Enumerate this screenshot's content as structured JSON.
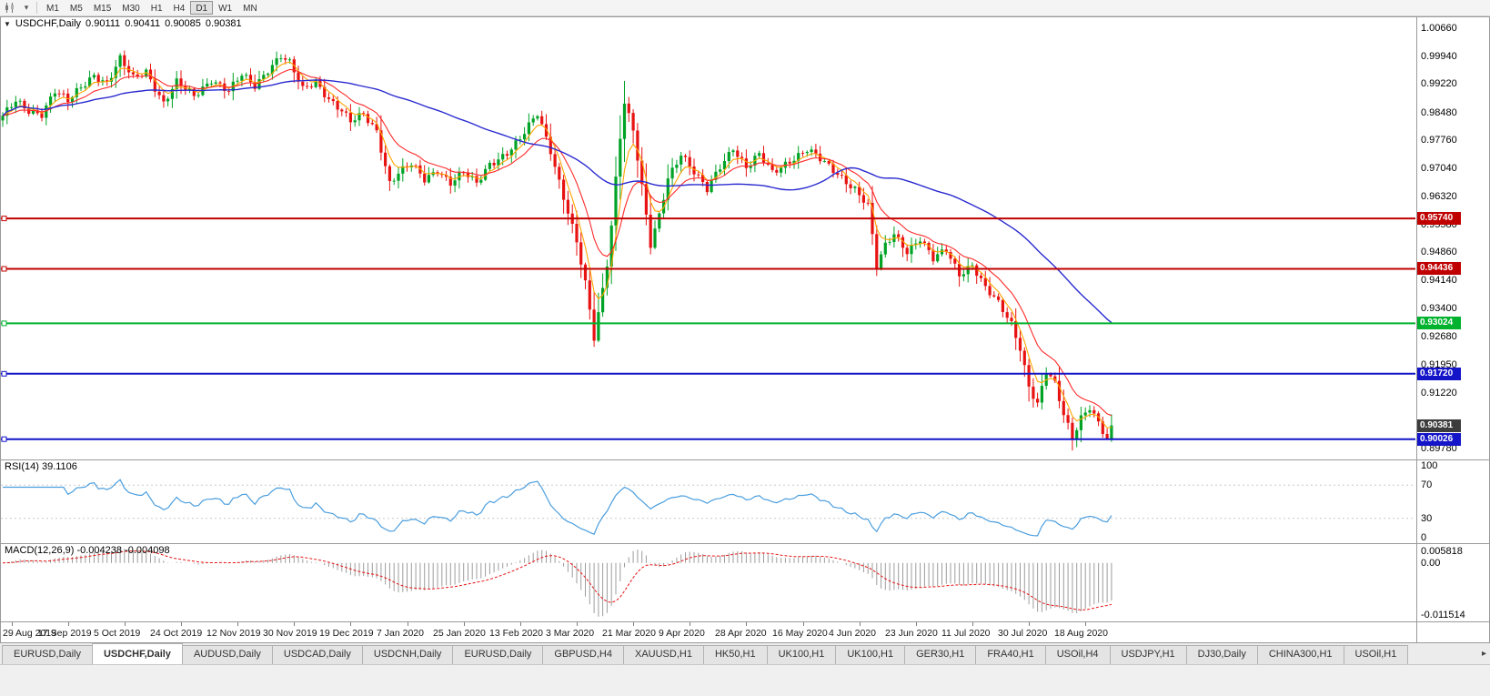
{
  "toolbar": {
    "timeframes": [
      {
        "label": "M1",
        "active": false
      },
      {
        "label": "M5",
        "active": false
      },
      {
        "label": "M15",
        "active": false
      },
      {
        "label": "M30",
        "active": false
      },
      {
        "label": "H1",
        "active": false
      },
      {
        "label": "H4",
        "active": false
      },
      {
        "label": "D1",
        "active": true
      },
      {
        "label": "W1",
        "active": false
      },
      {
        "label": "MN",
        "active": false
      }
    ]
  },
  "chart_header": {
    "title": "USDCHF,Daily",
    "open": "0.90111",
    "high": "0.90411",
    "low": "0.90085",
    "close": "0.90381"
  },
  "chart_data": {
    "type": "candlestick",
    "title": "USDCHF,Daily",
    "symbol": "USDCHF",
    "period": "Daily",
    "n_candles": 256,
    "candle_spacing": 4.78,
    "ylim": [
      0.895,
      1.0095
    ],
    "up_color": "#00A326",
    "down_color": "#E81212",
    "close_keypoints": [
      [
        0,
        0.9835
      ],
      [
        3,
        0.9878
      ],
      [
        6,
        0.9856
      ],
      [
        9,
        0.9846
      ],
      [
        12,
        0.9902
      ],
      [
        15,
        0.9876
      ],
      [
        18,
        0.9916
      ],
      [
        21,
        0.9948
      ],
      [
        24,
        0.9922
      ],
      [
        27,
        0.9984
      ],
      [
        30,
        0.9938
      ],
      [
        33,
        0.9958
      ],
      [
        37,
        0.9872
      ],
      [
        40,
        0.9924
      ],
      [
        44,
        0.9892
      ],
      [
        48,
        0.9936
      ],
      [
        52,
        0.9902
      ],
      [
        55,
        0.9944
      ],
      [
        58,
        0.9918
      ],
      [
        61,
        0.9962
      ],
      [
        64,
        0.9996
      ],
      [
        66,
        0.9974
      ],
      [
        69,
        0.9906
      ],
      [
        72,
        0.993
      ],
      [
        75,
        0.9886
      ],
      [
        78,
        0.9852
      ],
      [
        80,
        0.9822
      ],
      [
        83,
        0.9842
      ],
      [
        86,
        0.9802
      ],
      [
        89,
        0.9668
      ],
      [
        91,
        0.9692
      ],
      [
        94,
        0.9712
      ],
      [
        97,
        0.9674
      ],
      [
        100,
        0.9702
      ],
      [
        103,
        0.9668
      ],
      [
        106,
        0.9692
      ],
      [
        109,
        0.9662
      ],
      [
        112,
        0.9716
      ],
      [
        116,
        0.9746
      ],
      [
        119,
        0.9778
      ],
      [
        123,
        0.9844
      ],
      [
        126,
        0.9752
      ],
      [
        129,
        0.9632
      ],
      [
        132,
        0.9512
      ],
      [
        134,
        0.9402
      ],
      [
        136,
        0.9262
      ],
      [
        138,
        0.939
      ],
      [
        139,
        0.946
      ],
      [
        140,
        0.956
      ],
      [
        141,
        0.968
      ],
      [
        142,
        0.979
      ],
      [
        143,
        0.9878
      ],
      [
        145,
        0.9802
      ],
      [
        147,
        0.9652
      ],
      [
        149,
        0.9502
      ],
      [
        151,
        0.9582
      ],
      [
        153,
        0.9682
      ],
      [
        156,
        0.9744
      ],
      [
        159,
        0.9692
      ],
      [
        162,
        0.9646
      ],
      [
        165,
        0.971
      ],
      [
        168,
        0.976
      ],
      [
        171,
        0.9706
      ],
      [
        174,
        0.9736
      ],
      [
        177,
        0.9692
      ],
      [
        181,
        0.9726
      ],
      [
        185,
        0.9752
      ],
      [
        189,
        0.9716
      ],
      [
        193,
        0.9682
      ],
      [
        196,
        0.9652
      ],
      [
        199,
        0.9606
      ],
      [
        201,
        0.9446
      ],
      [
        203,
        0.9502
      ],
      [
        205,
        0.9536
      ],
      [
        208,
        0.9492
      ],
      [
        211,
        0.9522
      ],
      [
        214,
        0.9466
      ],
      [
        217,
        0.9492
      ],
      [
        220,
        0.9432
      ],
      [
        223,
        0.9456
      ],
      [
        226,
        0.9392
      ],
      [
        229,
        0.9352
      ],
      [
        232,
        0.9302
      ],
      [
        234,
        0.9242
      ],
      [
        236,
        0.9142
      ],
      [
        238,
        0.9092
      ],
      [
        240,
        0.9176
      ],
      [
        242,
        0.9142
      ],
      [
        244,
        0.9066
      ],
      [
        246,
        0.901
      ],
      [
        248,
        0.9062
      ],
      [
        250,
        0.9088
      ],
      [
        252,
        0.9042
      ],
      [
        254,
        0.8998
      ],
      [
        255,
        0.90381
      ]
    ],
    "moving_averages": [
      {
        "name": "fast",
        "method": "ema",
        "period": 5,
        "color": "#FFA500",
        "width": 1.1
      },
      {
        "name": "medium",
        "method": "ema",
        "period": 13,
        "color": "#FF2A2A",
        "width": 1.1
      },
      {
        "name": "slow",
        "method": "sma",
        "period": 55,
        "color": "#2A2AD0",
        "width": 1.4
      }
    ],
    "hlines": [
      {
        "price": 0.9574,
        "label": "0.95740",
        "color": "#C00000"
      },
      {
        "price": 0.94436,
        "label": "0.94436",
        "color": "#C00000"
      },
      {
        "price": 0.93024,
        "label": "0.93024",
        "color": "#00B22D"
      },
      {
        "price": 0.9172,
        "label": "0.91720",
        "color": "#1414C8"
      },
      {
        "price": 0.90026,
        "label": "0.90026",
        "color": "#1414C8"
      }
    ],
    "current_price": {
      "price": 0.90381,
      "label": "0.90381",
      "color": "#3C3C3C"
    },
    "y_axis_labels": [
      "1.00660",
      "0.99940",
      "0.99220",
      "0.98480",
      "0.97760",
      "0.97040",
      "0.96320",
      "0.95580",
      "0.94860",
      "0.94140",
      "0.93400",
      "0.92680",
      "0.91950",
      "0.91220",
      "0.89780"
    ]
  },
  "rsi": {
    "label": "RSI(14) 39.1106",
    "period": 14,
    "line_color": "#4A9EDE",
    "levels": [
      {
        "value": 100,
        "label": "100",
        "dashed": false
      },
      {
        "value": 70,
        "label": "70",
        "dashed": true
      },
      {
        "value": 30,
        "label": "30",
        "dashed": true
      },
      {
        "value": 0,
        "label": "0",
        "dashed": false
      }
    ]
  },
  "macd": {
    "label": "MACD(12,26,9) -0.004238 -0.004098",
    "fast": 12,
    "slow": 26,
    "signal": 9,
    "hist_color": "#9C9C9C",
    "signal_color": "#E81212",
    "axis_labels": {
      "top": "0.005818",
      "zero": "0.00",
      "bottom": "-0.011514"
    }
  },
  "date_axis": {
    "labels": [
      "29 Aug 2019",
      "17 Sep 2019",
      "5 Oct 2019",
      "24 Oct 2019",
      "12 Nov 2019",
      "30 Nov 2019",
      "19 Dec 2019",
      "7 Jan 2020",
      "25 Jan 2020",
      "13 Feb 2020",
      "3 Mar 2020",
      "21 Mar 2020",
      "9 Apr 2020",
      "28 Apr 2020",
      "16 May 2020",
      "4 Jun 2020",
      "23 Jun 2020",
      "11 Jul 2020",
      "30 Jul 2020",
      "18 Aug 2020"
    ],
    "first_candle_index": 2,
    "index_step": 13
  },
  "tabs": {
    "items": [
      {
        "label": "EURUSD,Daily",
        "active": false
      },
      {
        "label": "USDCHF,Daily",
        "active": true
      },
      {
        "label": "AUDUSD,Daily",
        "active": false
      },
      {
        "label": "USDCAD,Daily",
        "active": false
      },
      {
        "label": "USDCNH,Daily",
        "active": false
      },
      {
        "label": "EURUSD,Daily",
        "active": false
      },
      {
        "label": "GBPUSD,H4",
        "active": false
      },
      {
        "label": "XAUUSD,H1",
        "active": false
      },
      {
        "label": "HK50,H1",
        "active": false
      },
      {
        "label": "UK100,H1",
        "active": false
      },
      {
        "label": "UK100,H1",
        "active": false
      },
      {
        "label": "GER30,H1",
        "active": false
      },
      {
        "label": "FRA40,H1",
        "active": false
      },
      {
        "label": "USOil,H4",
        "active": false
      },
      {
        "label": "USDJPY,H1",
        "active": false
      },
      {
        "label": "DJ30,Daily",
        "active": false
      },
      {
        "label": "CHINA300,H1",
        "active": false
      },
      {
        "label": "USOil,H1",
        "active": false
      }
    ]
  }
}
